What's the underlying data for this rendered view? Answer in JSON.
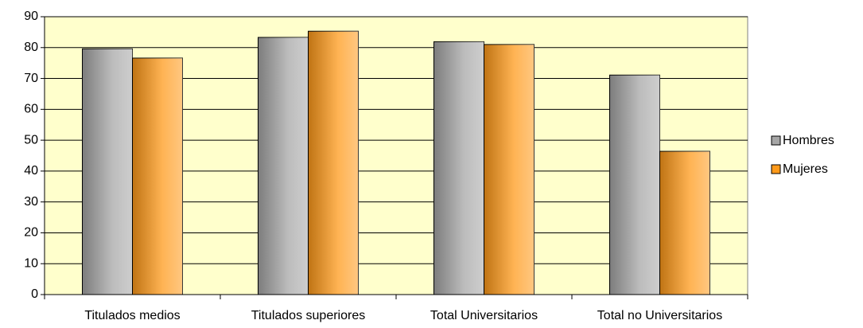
{
  "chart_data": {
    "type": "bar",
    "categories": [
      "Titulados medios",
      "Titulados superiores",
      "Total Universitarios",
      "Total no Universitarios"
    ],
    "series": [
      {
        "name": "Hombres",
        "color": "#a6a6a6",
        "values": [
          79.6,
          83.3,
          81.9,
          71.1
        ]
      },
      {
        "name": "Mujeres",
        "color": "#ff9a1a",
        "values": [
          76.6,
          85.3,
          81.0,
          46.4
        ]
      }
    ],
    "ylim": [
      0,
      90
    ],
    "yticks": [
      0,
      10,
      20,
      30,
      40,
      50,
      60,
      70,
      80,
      90
    ],
    "grid": true,
    "legend": "right"
  }
}
